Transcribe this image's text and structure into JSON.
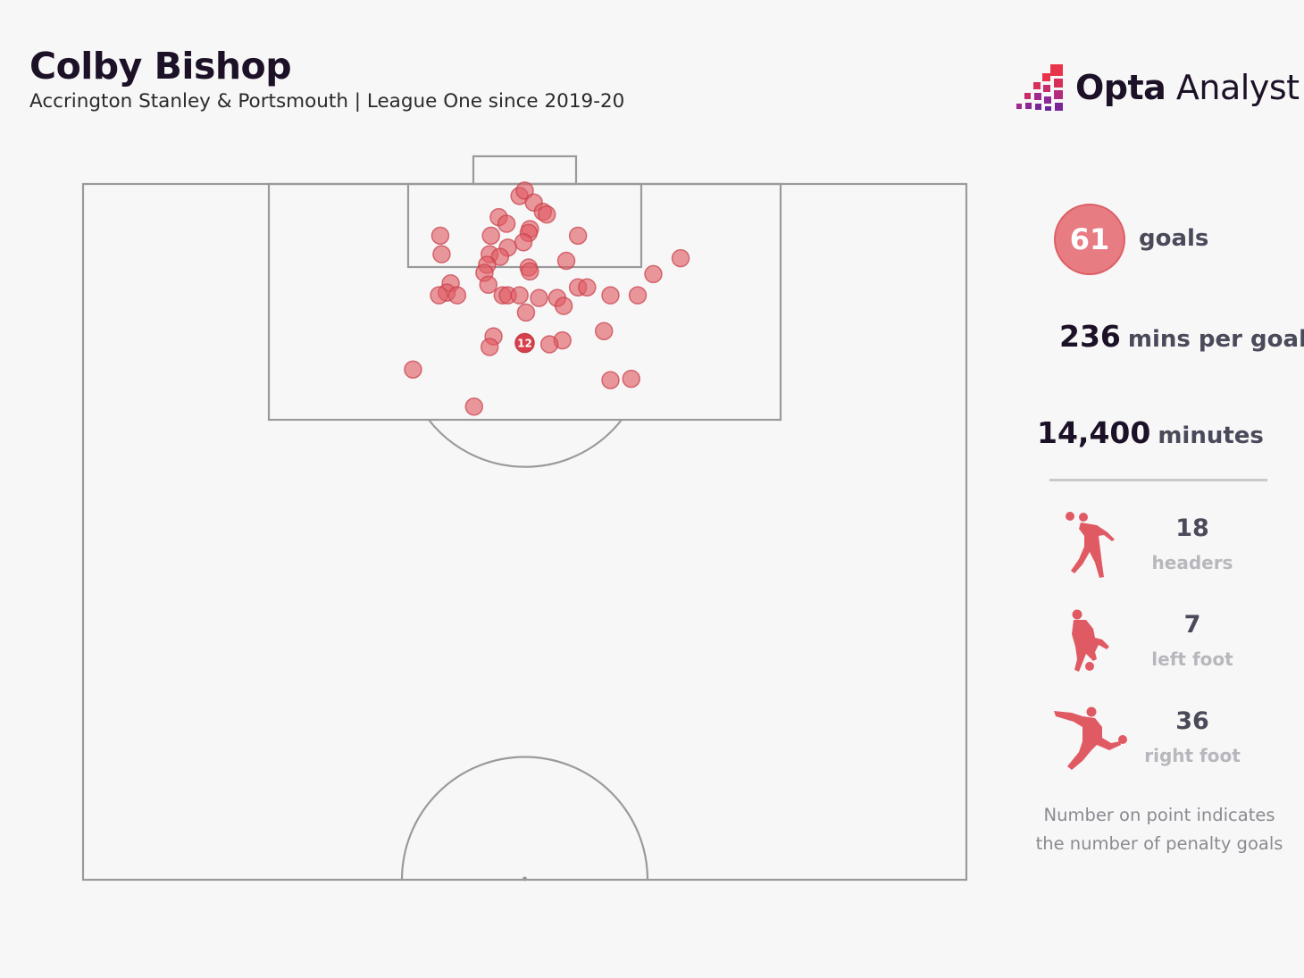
{
  "header": {
    "title": "Colby Bishop",
    "subtitle": "Accrington Stanley & Portsmouth | League One since 2019-20"
  },
  "logo": {
    "brand": "Opta",
    "product": "Analyst"
  },
  "stats": {
    "goals_value": "61",
    "goals_label": "goals",
    "mins_per_goal_value": "236",
    "mins_per_goal_label": "mins per goal",
    "minutes_value": "14,400",
    "minutes_label": "minutes"
  },
  "body_parts": [
    {
      "icon": "header-player-icon",
      "value": "18",
      "label": "headers"
    },
    {
      "icon": "left-foot-player-icon",
      "value": "7",
      "label": "left foot"
    },
    {
      "icon": "right-foot-player-icon",
      "value": "36",
      "label": "right foot"
    }
  ],
  "footnote": [
    "Number on point indicates",
    "the number of penalty goals"
  ],
  "colors": {
    "point_fill": "#e05a63",
    "point_stroke": "#c63d47",
    "penalty_fill": "#d7404b",
    "line": "#9a9a9a",
    "accent": "#e77c82"
  },
  "chart_data": {
    "type": "scatter",
    "description_units": "x = metres from left touchline (0-68), y = metres from goal line (0-52.5)",
    "x_range": [
      0,
      68
    ],
    "y_range": [
      0,
      52.5
    ],
    "penalty_point": {
      "x": 34,
      "y": 12,
      "label": "12"
    },
    "points": [
      {
        "x": 33.6,
        "y": 0.9
      },
      {
        "x": 34.0,
        "y": 0.5
      },
      {
        "x": 34.7,
        "y": 1.4
      },
      {
        "x": 35.4,
        "y": 2.1
      },
      {
        "x": 35.7,
        "y": 2.3
      },
      {
        "x": 32.0,
        "y": 2.5
      },
      {
        "x": 32.6,
        "y": 3.0
      },
      {
        "x": 34.4,
        "y": 3.4
      },
      {
        "x": 34.3,
        "y": 3.7
      },
      {
        "x": 27.5,
        "y": 3.9
      },
      {
        "x": 31.4,
        "y": 3.9
      },
      {
        "x": 38.1,
        "y": 3.9
      },
      {
        "x": 33.9,
        "y": 4.4
      },
      {
        "x": 32.7,
        "y": 4.8
      },
      {
        "x": 31.3,
        "y": 5.3
      },
      {
        "x": 27.6,
        "y": 5.3
      },
      {
        "x": 32.1,
        "y": 5.5
      },
      {
        "x": 37.2,
        "y": 5.8
      },
      {
        "x": 31.1,
        "y": 6.1
      },
      {
        "x": 46.0,
        "y": 5.6
      },
      {
        "x": 34.3,
        "y": 6.3
      },
      {
        "x": 34.4,
        "y": 6.6
      },
      {
        "x": 30.9,
        "y": 6.7
      },
      {
        "x": 43.9,
        "y": 6.8
      },
      {
        "x": 28.3,
        "y": 7.5
      },
      {
        "x": 31.2,
        "y": 7.6
      },
      {
        "x": 38.1,
        "y": 7.8
      },
      {
        "x": 38.8,
        "y": 7.8
      },
      {
        "x": 28.0,
        "y": 8.2
      },
      {
        "x": 27.4,
        "y": 8.4
      },
      {
        "x": 28.8,
        "y": 8.4
      },
      {
        "x": 32.3,
        "y": 8.4
      },
      {
        "x": 32.7,
        "y": 8.4
      },
      {
        "x": 33.6,
        "y": 8.4
      },
      {
        "x": 35.1,
        "y": 8.6
      },
      {
        "x": 36.5,
        "y": 8.6
      },
      {
        "x": 40.6,
        "y": 8.4
      },
      {
        "x": 42.7,
        "y": 8.4
      },
      {
        "x": 37.0,
        "y": 9.2
      },
      {
        "x": 34.1,
        "y": 9.7
      },
      {
        "x": 40.1,
        "y": 11.1
      },
      {
        "x": 31.6,
        "y": 11.5
      },
      {
        "x": 36.9,
        "y": 11.8
      },
      {
        "x": 31.3,
        "y": 12.3
      },
      {
        "x": 35.9,
        "y": 12.1
      },
      {
        "x": 25.4,
        "y": 14.0
      },
      {
        "x": 40.6,
        "y": 14.8
      },
      {
        "x": 42.2,
        "y": 14.7
      },
      {
        "x": 30.1,
        "y": 16.8
      }
    ]
  }
}
